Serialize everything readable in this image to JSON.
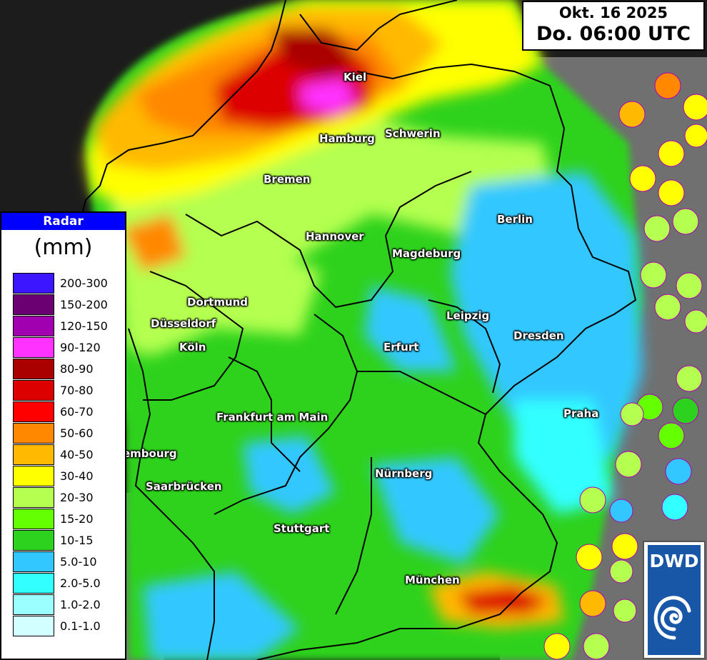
{
  "header": {
    "date": "Okt. 16 2025",
    "time": "Do. 06:00 UTC"
  },
  "legend": {
    "title": "Radar",
    "unit": "(mm)",
    "classes": [
      {
        "label": "200-300",
        "color": "#3b16ff"
      },
      {
        "label": "150-200",
        "color": "#6a0072"
      },
      {
        "label": "120-150",
        "color": "#a000b0"
      },
      {
        "label": "90-120",
        "color": "#ff32ff"
      },
      {
        "label": "80-90",
        "color": "#aa0000"
      },
      {
        "label": "70-80",
        "color": "#dd0000"
      },
      {
        "label": "60-70",
        "color": "#ff0000"
      },
      {
        "label": "50-60",
        "color": "#ff8800"
      },
      {
        "label": "40-50",
        "color": "#ffb900"
      },
      {
        "label": "30-40",
        "color": "#ffff00"
      },
      {
        "label": "20-30",
        "color": "#b4ff50"
      },
      {
        "label": "15-20",
        "color": "#64ff00"
      },
      {
        "label": "10-15",
        "color": "#2dd21e"
      },
      {
        "label": "5.0-10",
        "color": "#32c8ff"
      },
      {
        "label": "2.0-5.0",
        "color": "#32ffff"
      },
      {
        "label": "1.0-2.0",
        "color": "#9bffff"
      },
      {
        "label": "0.1-1.0",
        "color": "#d2ffff"
      }
    ]
  },
  "cities": [
    {
      "name": "Kiel"
    },
    {
      "name": "Hamburg"
    },
    {
      "name": "Schwerin"
    },
    {
      "name": "Bremen"
    },
    {
      "name": "Hannover"
    },
    {
      "name": "Berlin"
    },
    {
      "name": "Magdeburg"
    },
    {
      "name": "Dortmund"
    },
    {
      "name": "Düsseldorf"
    },
    {
      "name": "Köln"
    },
    {
      "name": "Leipzig"
    },
    {
      "name": "Dresden"
    },
    {
      "name": "Erfurt"
    },
    {
      "name": "Praha"
    },
    {
      "name": "Frankfurt am Main"
    },
    {
      "name": "embourg"
    },
    {
      "name": "Nürnberg"
    },
    {
      "name": "Saarbrücken"
    },
    {
      "name": "Stuttgart"
    },
    {
      "name": "München"
    }
  ],
  "logo": {
    "text": "DWD"
  },
  "colors": {
    "background": "#1c1c1c",
    "outside_coverage": "#707070"
  }
}
